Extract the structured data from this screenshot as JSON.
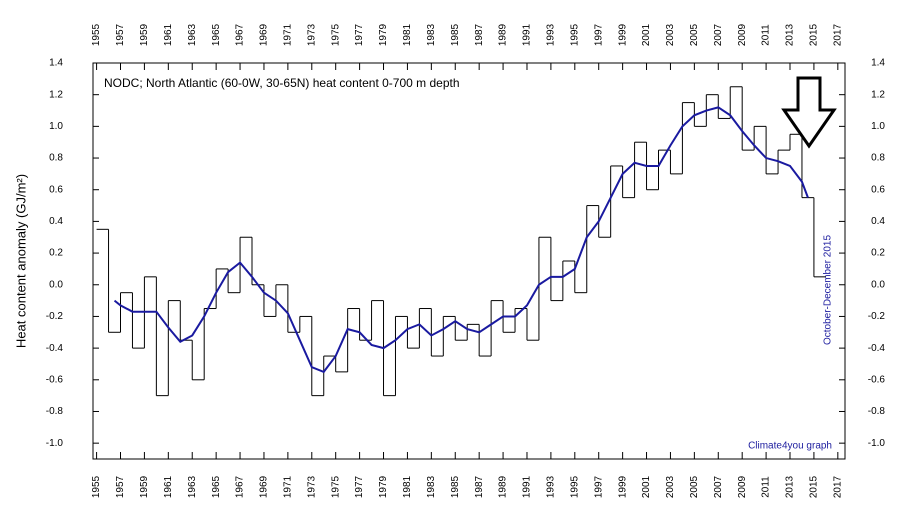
{
  "chart_data": {
    "type": "line",
    "title": "NODC; North Atlantic (60-0W, 30-65N) heat content 0-700 m depth",
    "y_label": "Heat content anomaly (GJ/m²)",
    "annotations": [
      "October-December 2015",
      "Climate4you graph"
    ],
    "xlim": [
      1954.7,
      2017.6
    ],
    "ylim": [
      -1.1,
      1.4
    ],
    "xticks": [
      1955,
      1957,
      1959,
      1961,
      1963,
      1965,
      1967,
      1969,
      1971,
      1973,
      1975,
      1977,
      1979,
      1981,
      1983,
      1985,
      1987,
      1989,
      1991,
      1993,
      1995,
      1997,
      1999,
      2001,
      2003,
      2005,
      2007,
      2009,
      2011,
      2013,
      2015,
      2017
    ],
    "yticks": [
      {
        "value": -1.0,
        "label": "-1.0"
      },
      {
        "value": -0.8,
        "label": "-0.8"
      },
      {
        "value": -0.6,
        "label": "-0.6"
      },
      {
        "value": -0.4,
        "label": "-0.4"
      },
      {
        "value": -0.2,
        "label": "-0.2"
      },
      {
        "value": 0.0,
        "label": "0.0"
      },
      {
        "value": 0.2,
        "label": "0.2"
      },
      {
        "value": 0.4,
        "label": "0.4"
      },
      {
        "value": 0.6,
        "label": "0.6"
      },
      {
        "value": 0.8,
        "label": "0.8"
      },
      {
        "value": 1.0,
        "label": "1.0"
      },
      {
        "value": 1.2,
        "label": "1.2"
      },
      {
        "value": 1.4,
        "label": "1.4"
      }
    ],
    "series": [
      {
        "color": "#000000",
        "step": true,
        "x": [
          1955,
          1956,
          1957,
          1958,
          1959,
          1960,
          1961,
          1962,
          1963,
          1964,
          1965,
          1966,
          1967,
          1968,
          1969,
          1970,
          1971,
          1972,
          1973,
          1974,
          1975,
          1976,
          1977,
          1978,
          1979,
          1980,
          1981,
          1982,
          1983,
          1984,
          1985,
          1986,
          1987,
          1988,
          1989,
          1990,
          1991,
          1992,
          1993,
          1994,
          1995,
          1996,
          1997,
          1998,
          1999,
          2000,
          2001,
          2002,
          2003,
          2004,
          2005,
          2006,
          2007,
          2008,
          2009,
          2010,
          2011,
          2012,
          2013,
          2014,
          2015
        ],
        "values": [
          0.35,
          -0.3,
          -0.05,
          -0.4,
          0.05,
          -0.7,
          -0.1,
          -0.35,
          -0.6,
          -0.15,
          0.1,
          -0.05,
          0.3,
          0.0,
          -0.2,
          0.0,
          -0.3,
          -0.2,
          -0.7,
          -0.45,
          -0.55,
          -0.15,
          -0.35,
          -0.1,
          -0.7,
          -0.2,
          -0.4,
          -0.15,
          -0.45,
          -0.2,
          -0.35,
          -0.25,
          -0.45,
          -0.1,
          -0.3,
          -0.15,
          -0.35,
          0.3,
          -0.1,
          0.15,
          -0.05,
          0.5,
          0.3,
          0.75,
          0.55,
          0.9,
          0.6,
          0.85,
          0.7,
          1.15,
          1.0,
          1.2,
          1.05,
          1.25,
          0.85,
          1.0,
          0.7,
          0.85,
          0.95,
          0.55,
          0.05
        ]
      },
      {
        "color": "#1a1aa0",
        "step": false,
        "x": [
          1956.5,
          1957,
          1958,
          1959,
          1960,
          1961,
          1962,
          1963,
          1964,
          1965,
          1966,
          1967,
          1968,
          1969,
          1970,
          1971,
          1972,
          1973,
          1974,
          1975,
          1976,
          1977,
          1978,
          1979,
          1980,
          1981,
          1982,
          1983,
          1984,
          1985,
          1986,
          1987,
          1988,
          1989,
          1990,
          1991,
          1992,
          1993,
          1994,
          1995,
          1996,
          1997,
          1998,
          1999,
          2000,
          2001,
          2002,
          2003,
          2004,
          2005,
          2006,
          2007,
          2008,
          2009,
          2010,
          2011,
          2012,
          2013,
          2014,
          2014.5
        ],
        "values": [
          -0.1,
          -0.13,
          -0.17,
          -0.17,
          -0.17,
          -0.27,
          -0.36,
          -0.32,
          -0.2,
          -0.05,
          0.08,
          0.14,
          0.05,
          -0.05,
          -0.1,
          -0.18,
          -0.35,
          -0.52,
          -0.55,
          -0.45,
          -0.28,
          -0.3,
          -0.38,
          -0.4,
          -0.35,
          -0.28,
          -0.25,
          -0.32,
          -0.28,
          -0.23,
          -0.28,
          -0.3,
          -0.25,
          -0.2,
          -0.2,
          -0.13,
          0.0,
          0.05,
          0.05,
          0.1,
          0.3,
          0.4,
          0.55,
          0.7,
          0.77,
          0.75,
          0.75,
          0.88,
          1.0,
          1.07,
          1.1,
          1.12,
          1.07,
          0.97,
          0.88,
          0.8,
          0.78,
          0.75,
          0.65,
          0.55
        ]
      }
    ]
  }
}
